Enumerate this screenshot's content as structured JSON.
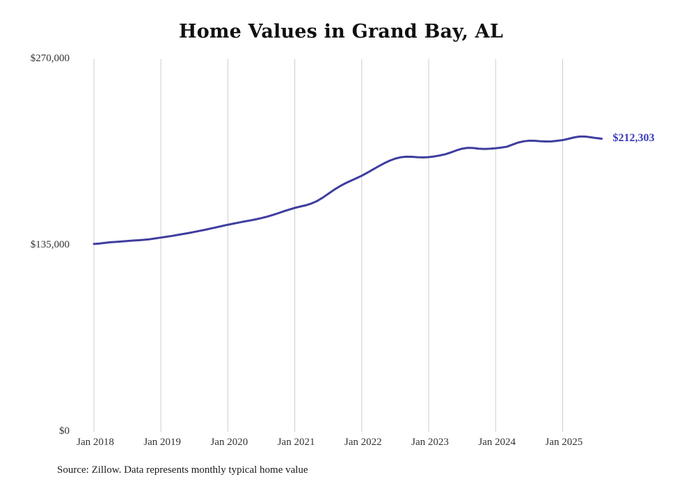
{
  "title": "Home Values in Grand Bay, AL",
  "source_note": "Source: Zillow. Data represents monthly typical home value",
  "end_label": "$212,303",
  "colors": {
    "line": "#3f3d9e",
    "end_label": "#3c3cbe",
    "gridline": "#cccccc",
    "text": "#333333"
  },
  "chart_data": {
    "type": "line",
    "title": "Home Values in Grand Bay, AL",
    "xlabel": "",
    "ylabel": "",
    "ylim": [
      0,
      270000
    ],
    "y_tick_values": [
      0,
      135000,
      270000
    ],
    "y_tick_labels": [
      "$0",
      "$135,000",
      "$270,000"
    ],
    "x_tick_labels": [
      "Jan 2018",
      "Jan 2019",
      "Jan 2020",
      "Jan 2021",
      "Jan 2022",
      "Jan 2023",
      "Jan 2024",
      "Jan 2025"
    ],
    "frequency": "monthly",
    "x_start": "2018-01",
    "x_end": "2025-08",
    "grid": "vertical-yearly",
    "legend_position": "none",
    "last_value": 212303,
    "series": [
      {
        "name": "Typical home value",
        "values": [
          136100,
          136400,
          136900,
          137300,
          137600,
          137900,
          138200,
          138500,
          138800,
          139100,
          139500,
          140100,
          140700,
          141300,
          141900,
          142600,
          143300,
          144000,
          144800,
          145600,
          146400,
          147300,
          148200,
          149100,
          150000,
          150800,
          151600,
          152400,
          153100,
          153900,
          154800,
          155800,
          157000,
          158300,
          159700,
          161000,
          162200,
          163200,
          164100,
          165400,
          167200,
          169600,
          172400,
          175200,
          177700,
          179900,
          181800,
          183600,
          185500,
          187700,
          190000,
          192300,
          194500,
          196400,
          197900,
          198900,
          199300,
          199200,
          198900,
          198800,
          199000,
          199500,
          200200,
          201100,
          202400,
          203900,
          205100,
          205700,
          205600,
          205100,
          204900,
          205100,
          205400,
          205900,
          206500,
          208000,
          209500,
          210400,
          210900,
          210800,
          210500,
          210300,
          210400,
          210800,
          211300,
          212200,
          213200,
          213900,
          213900,
          213400,
          212800,
          212303
        ]
      }
    ]
  }
}
